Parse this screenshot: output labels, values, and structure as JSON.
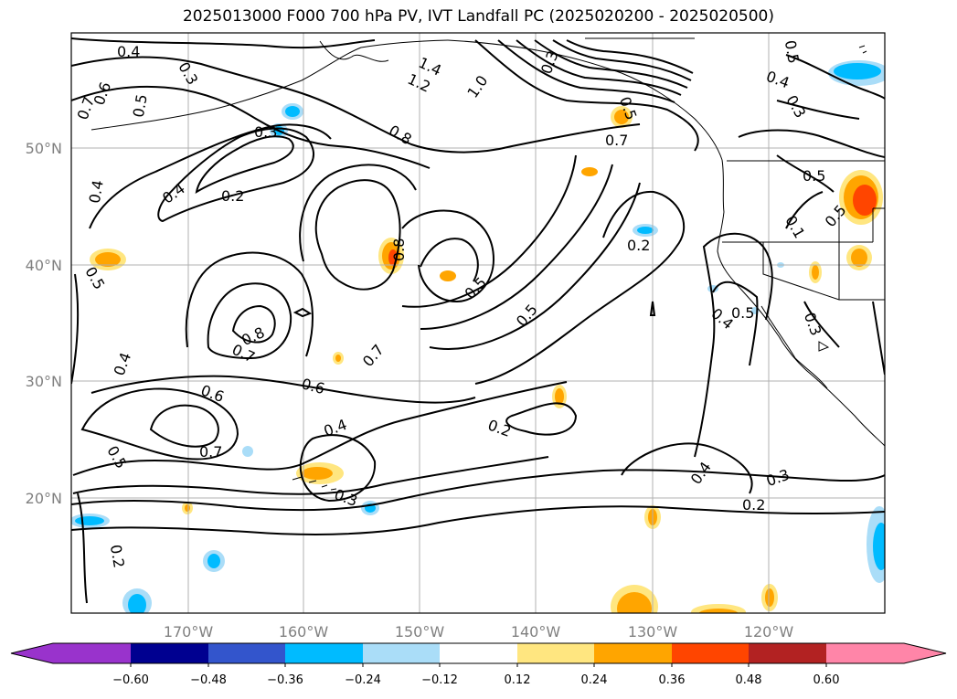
{
  "title": "2025013000 F000 700 hPa PV, IVT Landfall PC (2025020200 - 2025020500)",
  "map": {
    "lat_labels": [
      "50°N",
      "40°N",
      "30°N",
      "20°N"
    ],
    "lon_labels": [
      "170°W",
      "160°W",
      "150°W",
      "140°W",
      "130°W",
      "120°W"
    ],
    "grid": true
  },
  "colorbar": {
    "ticks": [
      "−0.60",
      "−0.48",
      "−0.36",
      "−0.24",
      "−0.12",
      "0.12",
      "0.24",
      "0.36",
      "0.48",
      "0.60"
    ],
    "colors": [
      "#9933cc",
      "#000090",
      "#3355cc",
      "#00bbff",
      "#aaddf8",
      "#ffffff",
      "#ffe680",
      "#ffa500",
      "#ff4500",
      "#b22222",
      "#ff85a8"
    ]
  },
  "contour_labels": [
    {
      "text": "0.4"
    },
    {
      "text": "0.3"
    },
    {
      "text": "1.4"
    },
    {
      "text": "1.2"
    },
    {
      "text": "1.0"
    },
    {
      "text": "0.3"
    },
    {
      "text": "0.5"
    },
    {
      "text": "0.4"
    },
    {
      "text": "0.3"
    },
    {
      "text": "0.7"
    },
    {
      "text": "0.6"
    },
    {
      "text": "0.5"
    },
    {
      "text": "0.3"
    },
    {
      "text": "0.8"
    },
    {
      "text": "0.7"
    },
    {
      "text": "0.4"
    },
    {
      "text": "0.2"
    },
    {
      "text": "0.4"
    },
    {
      "text": "0.2"
    },
    {
      "text": "0.8"
    },
    {
      "text": "0.5"
    },
    {
      "text": "0.5"
    },
    {
      "text": "0.8"
    },
    {
      "text": "0.7"
    },
    {
      "text": "0.7"
    },
    {
      "text": "0.4"
    },
    {
      "text": "0.6"
    },
    {
      "text": "0.6"
    },
    {
      "text": "0.4"
    },
    {
      "text": "0.2"
    },
    {
      "text": "0.5"
    },
    {
      "text": "0.7"
    },
    {
      "text": "0.3"
    },
    {
      "text": "0.4"
    },
    {
      "text": "0.3"
    },
    {
      "text": "0.2"
    },
    {
      "text": "0.2"
    },
    {
      "text": "0.5"
    },
    {
      "text": "0.1"
    },
    {
      "text": "0.5"
    },
    {
      "text": "0.4"
    },
    {
      "text": "0.5"
    },
    {
      "text": "0.3"
    },
    {
      "text": "0.5"
    },
    {
      "text": "0.5"
    }
  ]
}
